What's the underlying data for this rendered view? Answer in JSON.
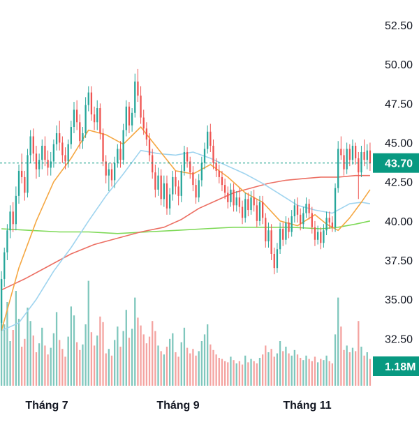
{
  "chart_data": {
    "type": "candlestick",
    "x_axis": {
      "tick_labels": [
        "Tháng 7",
        "Tháng 9",
        "Tháng 11"
      ]
    },
    "y_axis": {
      "side": "right",
      "tick_labels": [
        "52.50",
        "50.00",
        "47.50",
        "45.00",
        "42.50",
        "40.00",
        "37.50",
        "35.00",
        "32.50"
      ],
      "tick_values": [
        52.5,
        50.0,
        47.5,
        45.0,
        42.5,
        40.0,
        37.5,
        35.0,
        32.5
      ],
      "ylim": [
        30.6,
        53.3
      ]
    },
    "last_price": {
      "label": "43.70",
      "value": 43.7,
      "color": "#089981"
    },
    "last_volume": {
      "label": "1.18M",
      "color": "#089981"
    },
    "colors": {
      "up": "#26a69a",
      "down": "#ef5350",
      "volume_up": "#7fc7bd",
      "volume_down": "#f4a3a0",
      "ma_fast": "#f5a742",
      "ma_mid": "#9fd4ef",
      "ma_slow": "#ec6e62",
      "ma_long": "#7ed957"
    },
    "grid": false,
    "legend": "none",
    "price_axis_min_visible": 32.5,
    "candles_ohlc": [
      [
        33.5,
        36.8,
        33.0,
        36.3
      ],
      [
        36.3,
        38.3,
        35.8,
        38.0
      ],
      [
        38.0,
        39.8,
        37.5,
        39.4
      ],
      [
        39.4,
        41.0,
        38.9,
        40.6
      ],
      [
        40.6,
        41.2,
        39.3,
        39.8
      ],
      [
        39.8,
        42.2,
        39.4,
        41.6
      ],
      [
        41.6,
        43.6,
        41.1,
        43.2
      ],
      [
        43.2,
        44.3,
        42.4,
        42.8
      ],
      [
        42.8,
        43.2,
        41.3,
        41.8
      ],
      [
        41.8,
        44.6,
        41.5,
        44.2
      ],
      [
        44.2,
        45.8,
        43.7,
        45.4
      ],
      [
        45.4,
        45.9,
        43.8,
        44.3
      ],
      [
        44.3,
        44.8,
        42.7,
        43.3
      ],
      [
        43.3,
        44.3,
        42.8,
        43.9
      ],
      [
        43.9,
        45.2,
        43.3,
        44.8
      ],
      [
        44.8,
        45.4,
        43.5,
        43.9
      ],
      [
        43.9,
        44.5,
        42.9,
        43.4
      ],
      [
        43.4,
        44.4,
        42.9,
        43.8
      ],
      [
        43.8,
        45.2,
        43.4,
        44.9
      ],
      [
        44.9,
        46.1,
        44.5,
        45.6
      ],
      [
        45.6,
        46.4,
        44.5,
        45.0
      ],
      [
        45.0,
        45.4,
        43.7,
        44.2
      ],
      [
        44.2,
        44.7,
        43.3,
        43.8
      ],
      [
        43.8,
        45.2,
        43.4,
        44.9
      ],
      [
        44.9,
        46.4,
        44.6,
        46.0
      ],
      [
        46.0,
        47.6,
        45.6,
        47.1
      ],
      [
        47.1,
        47.7,
        45.8,
        46.3
      ],
      [
        46.3,
        46.8,
        44.6,
        45.1
      ],
      [
        45.1,
        46.0,
        44.6,
        45.6
      ],
      [
        45.6,
        47.9,
        45.3,
        47.4
      ],
      [
        47.4,
        48.6,
        47.0,
        48.2
      ],
      [
        48.2,
        48.6,
        46.4,
        46.8
      ],
      [
        46.8,
        47.3,
        45.8,
        46.3
      ],
      [
        46.3,
        47.7,
        45.8,
        47.2
      ],
      [
        47.2,
        47.5,
        45.2,
        45.6
      ],
      [
        45.6,
        45.9,
        43.5,
        43.8
      ],
      [
        43.8,
        44.2,
        42.4,
        42.9
      ],
      [
        42.9,
        43.7,
        41.9,
        43.3
      ],
      [
        43.3,
        43.7,
        42.2,
        42.6
      ],
      [
        42.6,
        44.1,
        42.1,
        43.7
      ],
      [
        43.7,
        44.9,
        43.4,
        44.6
      ],
      [
        44.6,
        45.1,
        43.4,
        43.9
      ],
      [
        43.9,
        46.2,
        43.6,
        45.8
      ],
      [
        45.8,
        47.7,
        45.4,
        47.3
      ],
      [
        47.3,
        47.6,
        45.6,
        46.1
      ],
      [
        46.1,
        47.2,
        45.7,
        46.9
      ],
      [
        46.9,
        49.4,
        46.6,
        48.9
      ],
      [
        48.9,
        49.7,
        47.6,
        48.0
      ],
      [
        48.0,
        48.6,
        46.2,
        46.6
      ],
      [
        46.6,
        47.1,
        45.5,
        45.9
      ],
      [
        45.9,
        46.3,
        44.8,
        45.2
      ],
      [
        45.2,
        45.6,
        43.8,
        44.2
      ],
      [
        44.2,
        44.6,
        42.7,
        43.1
      ],
      [
        43.1,
        43.6,
        41.5,
        42.0
      ],
      [
        42.0,
        43.4,
        41.6,
        42.9
      ],
      [
        42.9,
        43.3,
        41.0,
        41.4
      ],
      [
        41.4,
        42.9,
        40.9,
        42.4
      ],
      [
        42.4,
        42.9,
        40.4,
        40.8
      ],
      [
        40.8,
        42.1,
        40.4,
        41.7
      ],
      [
        41.7,
        43.2,
        41.3,
        42.8
      ],
      [
        42.8,
        43.2,
        41.7,
        42.2
      ],
      [
        42.2,
        42.6,
        41.0,
        41.6
      ],
      [
        41.6,
        43.6,
        41.2,
        43.2
      ],
      [
        43.2,
        44.8,
        42.9,
        44.4
      ],
      [
        44.4,
        44.7,
        43.4,
        43.8
      ],
      [
        43.8,
        44.1,
        42.7,
        43.1
      ],
      [
        43.1,
        43.5,
        41.9,
        42.3
      ],
      [
        42.3,
        42.7,
        41.1,
        41.5
      ],
      [
        41.5,
        43.0,
        41.2,
        42.6
      ],
      [
        42.6,
        44.1,
        42.2,
        43.7
      ],
      [
        43.7,
        45.0,
        43.3,
        44.6
      ],
      [
        44.6,
        46.1,
        44.3,
        45.7
      ],
      [
        45.7,
        46.2,
        44.4,
        44.8
      ],
      [
        44.8,
        45.2,
        43.3,
        43.7
      ],
      [
        43.7,
        44.0,
        42.8,
        43.2
      ],
      [
        43.2,
        43.6,
        42.4,
        42.8
      ],
      [
        42.8,
        43.2,
        41.9,
        42.3
      ],
      [
        42.3,
        42.7,
        41.4,
        41.8
      ],
      [
        41.8,
        42.2,
        40.8,
        41.2
      ],
      [
        41.2,
        42.4,
        40.9,
        42.0
      ],
      [
        42.0,
        42.4,
        40.6,
        41.0
      ],
      [
        41.0,
        41.9,
        40.6,
        41.5
      ],
      [
        41.5,
        42.1,
        40.5,
        40.9
      ],
      [
        40.9,
        41.3,
        39.8,
        40.2
      ],
      [
        40.2,
        41.8,
        39.9,
        41.4
      ],
      [
        41.4,
        41.8,
        40.3,
        40.7
      ],
      [
        40.7,
        41.9,
        40.4,
        41.5
      ],
      [
        41.5,
        42.0,
        40.6,
        41.0
      ],
      [
        41.0,
        41.4,
        39.6,
        40.0
      ],
      [
        40.0,
        41.6,
        39.7,
        41.2
      ],
      [
        41.2,
        41.6,
        39.8,
        40.2
      ],
      [
        40.2,
        40.5,
        38.3,
        38.7
      ],
      [
        38.7,
        39.9,
        38.3,
        39.4
      ],
      [
        39.4,
        39.8,
        37.5,
        37.9
      ],
      [
        37.9,
        38.3,
        36.6,
        37.0
      ],
      [
        37.0,
        38.6,
        36.7,
        38.2
      ],
      [
        38.2,
        39.9,
        37.9,
        39.5
      ],
      [
        39.5,
        39.9,
        38.4,
        38.8
      ],
      [
        38.8,
        40.3,
        38.5,
        39.9
      ],
      [
        39.9,
        40.2,
        38.9,
        39.3
      ],
      [
        39.3,
        40.7,
        39.0,
        40.3
      ],
      [
        40.3,
        41.4,
        39.9,
        41.0
      ],
      [
        41.0,
        41.5,
        39.9,
        40.4
      ],
      [
        40.4,
        40.8,
        39.4,
        39.8
      ],
      [
        39.8,
        40.9,
        39.5,
        40.5
      ],
      [
        40.5,
        41.5,
        40.2,
        41.1
      ],
      [
        41.1,
        41.4,
        40.1,
        40.5
      ],
      [
        40.5,
        40.9,
        39.2,
        39.6
      ],
      [
        39.6,
        40.0,
        38.4,
        38.8
      ],
      [
        38.8,
        39.7,
        38.5,
        39.3
      ],
      [
        39.3,
        39.6,
        38.2,
        38.6
      ],
      [
        38.6,
        39.8,
        38.3,
        39.4
      ],
      [
        39.4,
        40.6,
        39.1,
        40.2
      ],
      [
        40.2,
        40.6,
        39.5,
        39.9
      ],
      [
        39.9,
        40.3,
        39.3,
        39.6
      ],
      [
        39.6,
        42.4,
        39.3,
        42.1
      ],
      [
        42.1,
        45.1,
        41.8,
        44.6
      ],
      [
        44.6,
        45.4,
        43.9,
        44.2
      ],
      [
        44.2,
        44.6,
        42.9,
        43.3
      ],
      [
        43.3,
        45.0,
        43.0,
        44.6
      ],
      [
        44.6,
        44.9,
        43.5,
        43.9
      ],
      [
        43.9,
        45.2,
        43.6,
        44.8
      ],
      [
        44.8,
        45.0,
        43.6,
        44.0
      ],
      [
        44.0,
        44.4,
        41.4,
        43.1
      ],
      [
        43.1,
        44.8,
        42.8,
        44.4
      ],
      [
        44.4,
        45.2,
        43.5,
        43.9
      ],
      [
        43.9,
        44.9,
        43.3,
        44.5
      ],
      [
        44.5,
        45.0,
        43.2,
        43.7
      ]
    ],
    "volume_relative": [
      0.95,
      0.55,
      0.75,
      0.4,
      0.5,
      0.85,
      0.6,
      0.35,
      0.42,
      0.7,
      0.58,
      0.45,
      0.3,
      0.38,
      0.52,
      0.36,
      0.28,
      0.34,
      0.47,
      0.66,
      0.41,
      0.33,
      0.26,
      0.44,
      0.71,
      0.63,
      0.39,
      0.32,
      0.37,
      0.55,
      0.94,
      0.48,
      0.36,
      0.45,
      0.62,
      0.57,
      0.29,
      0.33,
      0.27,
      0.41,
      0.53,
      0.35,
      0.49,
      0.68,
      0.43,
      0.51,
      0.79,
      0.61,
      0.54,
      0.46,
      0.38,
      0.44,
      0.58,
      0.49,
      0.36,
      0.31,
      0.28,
      0.35,
      0.42,
      0.47,
      0.3,
      0.26,
      0.39,
      0.52,
      0.34,
      0.29,
      0.33,
      0.27,
      0.31,
      0.4,
      0.46,
      0.55,
      0.37,
      0.32,
      0.28,
      0.25,
      0.24,
      0.22,
      0.21,
      0.26,
      0.23,
      0.2,
      0.22,
      0.19,
      0.27,
      0.21,
      0.24,
      0.22,
      0.2,
      0.25,
      0.28,
      0.36,
      0.3,
      0.33,
      0.26,
      0.29,
      0.4,
      0.31,
      0.35,
      0.29,
      0.27,
      0.32,
      0.28,
      0.25,
      0.23,
      0.27,
      0.24,
      0.22,
      0.26,
      0.21,
      0.24,
      0.23,
      0.27,
      0.22,
      0.2,
      0.46,
      0.79,
      0.53,
      0.32,
      0.36,
      0.3,
      0.34,
      0.31,
      0.58,
      0.35,
      0.27,
      0.3,
      0.24
    ],
    "ma_fast_points": [
      [
        0,
        33.0
      ],
      [
        6,
        37.0
      ],
      [
        12,
        40.0
      ],
      [
        18,
        42.5
      ],
      [
        24,
        44.0
      ],
      [
        30,
        45.8
      ],
      [
        36,
        45.5
      ],
      [
        42,
        44.9
      ],
      [
        48,
        46.0
      ],
      [
        54,
        44.6
      ],
      [
        60,
        43.2
      ],
      [
        66,
        43.0
      ],
      [
        72,
        43.6
      ],
      [
        78,
        42.8
      ],
      [
        84,
        41.8
      ],
      [
        90,
        41.2
      ],
      [
        96,
        40.0
      ],
      [
        102,
        39.7
      ],
      [
        108,
        40.4
      ],
      [
        112,
        39.8
      ],
      [
        116,
        39.4
      ],
      [
        120,
        40.2
      ],
      [
        124,
        41.2
      ],
      [
        127,
        42.0
      ]
    ],
    "ma_mid_points": [
      [
        0,
        33.0
      ],
      [
        6,
        33.5
      ],
      [
        12,
        35.0
      ],
      [
        18,
        36.8
      ],
      [
        24,
        38.3
      ],
      [
        30,
        40.0
      ],
      [
        36,
        41.6
      ],
      [
        42,
        43.0
      ],
      [
        48,
        44.5
      ],
      [
        54,
        44.3
      ],
      [
        60,
        44.2
      ],
      [
        66,
        44.4
      ],
      [
        72,
        44.0
      ],
      [
        78,
        43.5
      ],
      [
        84,
        43.0
      ],
      [
        90,
        42.4
      ],
      [
        96,
        41.7
      ],
      [
        102,
        41.0
      ],
      [
        108,
        40.7
      ],
      [
        114,
        40.5
      ],
      [
        120,
        41.1
      ],
      [
        124,
        41.2
      ],
      [
        127,
        41.1
      ]
    ],
    "ma_slow_points": [
      [
        0,
        35.6
      ],
      [
        8,
        36.3
      ],
      [
        16,
        37.1
      ],
      [
        24,
        37.9
      ],
      [
        32,
        38.5
      ],
      [
        40,
        38.9
      ],
      [
        48,
        39.3
      ],
      [
        56,
        39.6
      ],
      [
        62,
        40.1
      ],
      [
        68,
        40.8
      ],
      [
        74,
        41.3
      ],
      [
        80,
        41.8
      ],
      [
        86,
        42.1
      ],
      [
        92,
        42.4
      ],
      [
        98,
        42.6
      ],
      [
        104,
        42.7
      ],
      [
        110,
        42.8
      ],
      [
        116,
        42.8
      ],
      [
        122,
        42.9
      ],
      [
        127,
        42.9
      ]
    ],
    "ma_long_points": [
      [
        0,
        39.5
      ],
      [
        10,
        39.4
      ],
      [
        20,
        39.3
      ],
      [
        30,
        39.3
      ],
      [
        40,
        39.2
      ],
      [
        50,
        39.3
      ],
      [
        60,
        39.4
      ],
      [
        70,
        39.5
      ],
      [
        80,
        39.6
      ],
      [
        90,
        39.6
      ],
      [
        100,
        39.6
      ],
      [
        110,
        39.5
      ],
      [
        116,
        39.6
      ],
      [
        122,
        39.8
      ],
      [
        127,
        40.0
      ]
    ]
  }
}
